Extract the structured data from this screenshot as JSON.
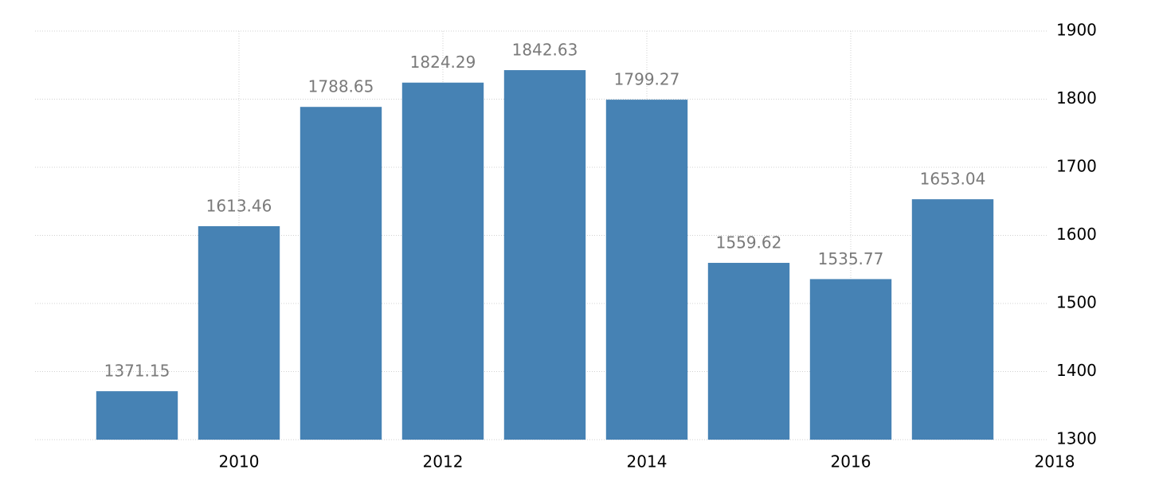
{
  "chart_data": {
    "type": "bar",
    "x": [
      2009,
      2010,
      2011,
      2012,
      2013,
      2014,
      2015,
      2016,
      2017
    ],
    "values": [
      1371.15,
      1613.46,
      1788.65,
      1824.29,
      1842.63,
      1799.27,
      1559.62,
      1535.77,
      1653.04
    ],
    "color": "#4682b4",
    "xlim": [
      2008,
      2018
    ],
    "xticks": [
      2010,
      2012,
      2014,
      2016,
      2018
    ],
    "ylim": [
      1300,
      1900
    ],
    "yticks": [
      1300,
      1400,
      1500,
      1600,
      1700,
      1800,
      1900
    ],
    "grid": true
  }
}
